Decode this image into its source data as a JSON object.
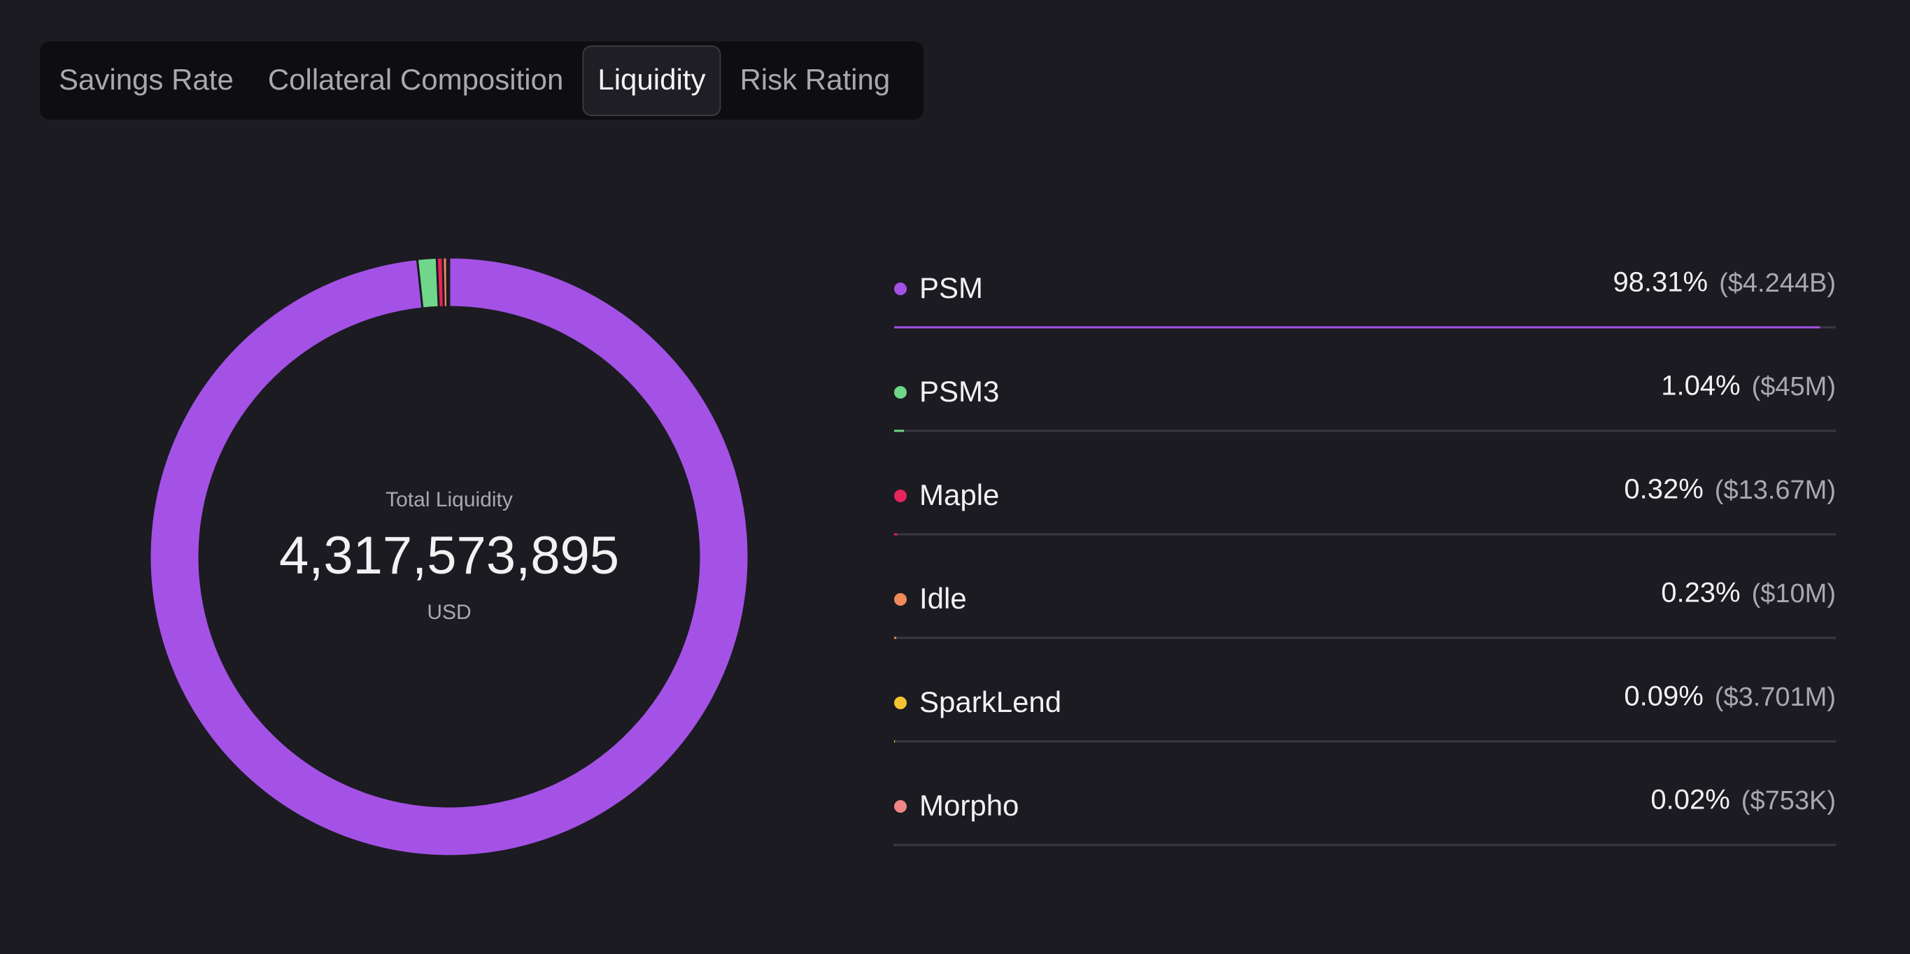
{
  "tabs": [
    "Savings Rate",
    "Collateral Composition",
    "Liquidity",
    "Risk Rating"
  ],
  "active_tab": 2,
  "chart_data": {
    "type": "pie",
    "donut": true,
    "center_label": "Total Liquidity",
    "center_value": "4,317,573,895",
    "center_unit": "USD",
    "categories": [
      "PSM",
      "PSM3",
      "Maple",
      "Idle",
      "SparkLend",
      "Morpho"
    ],
    "values": [
      98.31,
      1.04,
      0.32,
      0.23,
      0.09,
      0.02
    ],
    "value_labels": [
      "98.31%",
      "1.04%",
      "0.32%",
      "0.23%",
      "0.09%",
      "0.02%"
    ],
    "amounts": [
      4244000000,
      45000000,
      13670000,
      10000000,
      3701000,
      753000
    ],
    "amount_labels": [
      "($4.244B)",
      "($45M)",
      "($13.67M)",
      "($10M)",
      "($3.701M)",
      "($753K)"
    ],
    "colors": [
      "#a452e6",
      "#6fd68a",
      "#e8245a",
      "#f08a5a",
      "#f5c330",
      "#f08585"
    ]
  }
}
